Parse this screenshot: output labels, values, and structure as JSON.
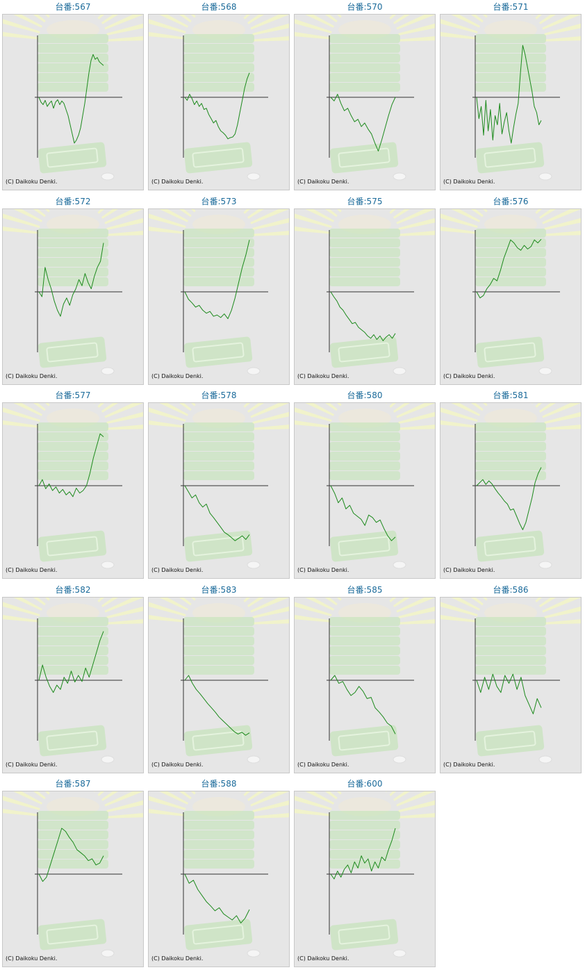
{
  "colors": {
    "title": "#1a6a9a",
    "background": "#e6e6e6",
    "line": "#1d8a1d",
    "axis": "#333333",
    "decor_green": "#bfe3b3",
    "decor_ray": "#f2f4c8"
  },
  "graphs": [
    {
      "title": "台番:567",
      "copyright": "(C) Daikoku Denki.",
      "values": [
        0,
        -8,
        -12,
        -5,
        -15,
        -10,
        -6,
        -18,
        -8,
        -4,
        -12,
        -6,
        -10,
        -20,
        -30,
        -45,
        -60,
        -75,
        -70,
        -62,
        -50,
        -30,
        -10,
        15,
        40,
        60,
        70,
        62,
        65,
        58,
        55,
        52
      ]
    },
    {
      "title": "台番:568",
      "copyright": "(C) Daikoku Denki.",
      "values": [
        0,
        -5,
        5,
        -2,
        -12,
        -6,
        -15,
        -10,
        -20,
        -18,
        -28,
        -35,
        -42,
        -38,
        -48,
        -55,
        -58,
        -62,
        -68,
        -66,
        -65,
        -60,
        -45,
        -25,
        -5,
        15,
        30,
        40
      ]
    },
    {
      "title": "台番:570",
      "copyright": "(C) Daikoku Denki.",
      "values": [
        0,
        -6,
        5,
        -10,
        -22,
        -18,
        -30,
        -40,
        -36,
        -48,
        -42,
        -52,
        -60,
        -75,
        -88,
        -70,
        -50,
        -30,
        -12,
        0
      ]
    },
    {
      "title": "台番:571",
      "copyright": "(C) Daikoku Denki.",
      "values": [
        0,
        -35,
        -15,
        -62,
        -5,
        -55,
        -20,
        -70,
        -30,
        -45,
        -10,
        -60,
        -40,
        -25,
        -55,
        -75,
        -50,
        -28,
        -10,
        40,
        85,
        70,
        50,
        30,
        10,
        -15,
        -25,
        -45,
        -38
      ]
    },
    {
      "title": "台番:572",
      "copyright": "(C) Daikoku Denki.",
      "values": [
        0,
        -8,
        40,
        20,
        5,
        -15,
        -30,
        -40,
        -20,
        -10,
        -22,
        -5,
        5,
        20,
        10,
        30,
        15,
        5,
        25,
        40,
        50,
        80
      ]
    },
    {
      "title": "台番:573",
      "copyright": "(C) Daikoku Denki.",
      "values": [
        0,
        -12,
        -18,
        -25,
        -22,
        -30,
        -35,
        -32,
        -40,
        -38,
        -42,
        -36,
        -44,
        -30,
        -10,
        15,
        40,
        60,
        85
      ]
    },
    {
      "title": "台番:575",
      "copyright": "(C) Daikoku Denki.",
      "values": [
        0,
        -8,
        -15,
        -25,
        -30,
        -38,
        -45,
        -52,
        -50,
        -58,
        -62,
        -66,
        -72,
        -76,
        -70,
        -78,
        -72,
        -80,
        -74,
        -70,
        -76,
        -68
      ]
    },
    {
      "title": "台番:576",
      "copyright": "(C) Daikoku Denki.",
      "values": [
        0,
        -10,
        -6,
        5,
        12,
        22,
        18,
        35,
        55,
        70,
        85,
        80,
        72,
        68,
        76,
        70,
        74,
        85,
        80,
        86
      ]
    },
    {
      "title": "台番:577",
      "copyright": "(C) Daikoku Denki.",
      "values": [
        0,
        10,
        -5,
        3,
        -8,
        -2,
        -12,
        -6,
        -15,
        -10,
        -18,
        -4,
        -12,
        -8,
        0,
        20,
        45,
        65,
        85,
        80
      ]
    },
    {
      "title": "台番:578",
      "copyright": "(C) Daikoku Denki.",
      "values": [
        0,
        -10,
        -20,
        -15,
        -28,
        -35,
        -30,
        -45,
        -52,
        -60,
        -68,
        -76,
        -80,
        -85,
        -90,
        -86,
        -82,
        -88,
        -80
      ]
    },
    {
      "title": "台番:580",
      "copyright": "(C) Daikoku Denki.",
      "values": [
        0,
        -12,
        -28,
        -20,
        -38,
        -32,
        -45,
        -50,
        -55,
        -65,
        -48,
        -52,
        -60,
        -56,
        -70,
        -82,
        -90,
        -84
      ]
    },
    {
      "title": "台番:581",
      "copyright": "(C) Daikoku Denki.",
      "values": [
        0,
        5,
        10,
        2,
        8,
        3,
        -5,
        -12,
        -18,
        -25,
        -30,
        -40,
        -38,
        -50,
        -62,
        -72,
        -60,
        -40,
        -20,
        5,
        20,
        30
      ]
    },
    {
      "title": "台番:582",
      "copyright": "(C) Daikoku Denki.",
      "values": [
        0,
        25,
        5,
        -10,
        -20,
        -8,
        -15,
        5,
        -5,
        15,
        -3,
        8,
        -2,
        20,
        5,
        25,
        45,
        65,
        80
      ]
    },
    {
      "title": "台番:583",
      "copyright": "(C) Daikoku Denki.",
      "values": [
        0,
        8,
        -5,
        -15,
        -22,
        -30,
        -38,
        -45,
        -52,
        -60,
        -66,
        -72,
        -78,
        -84,
        -88,
        -85,
        -90,
        -86
      ]
    },
    {
      "title": "台番:585",
      "copyright": "(C) Daikoku Denki.",
      "values": [
        0,
        8,
        -5,
        -2,
        -15,
        -25,
        -20,
        -10,
        -18,
        -30,
        -28,
        -45,
        -52,
        -60,
        -70,
        -75,
        -88
      ]
    },
    {
      "title": "台番:586",
      "copyright": "(C) Daikoku Denki.",
      "values": [
        0,
        -20,
        5,
        -15,
        10,
        -10,
        -20,
        8,
        -5,
        10,
        -15,
        5,
        -25,
        -40,
        -55,
        -30,
        -45
      ]
    },
    {
      "title": "台番:587",
      "copyright": "(C) Daikoku Denki.",
      "values": [
        0,
        -12,
        -5,
        15,
        35,
        55,
        75,
        70,
        60,
        52,
        40,
        35,
        30,
        22,
        25,
        15,
        18,
        30
      ]
    },
    {
      "title": "台番:588",
      "copyright": "(C) Daikoku Denki.",
      "values": [
        0,
        -15,
        -10,
        -25,
        -35,
        -45,
        -52,
        -60,
        -55,
        -65,
        -70,
        -75,
        -68,
        -80,
        -72,
        -58
      ]
    },
    {
      "title": "台番:600",
      "copyright": "(C) Daikoku Denki.",
      "values": [
        0,
        -8,
        5,
        -5,
        8,
        15,
        2,
        20,
        10,
        30,
        18,
        25,
        5,
        20,
        10,
        28,
        22,
        40,
        55,
        75
      ]
    }
  ]
}
